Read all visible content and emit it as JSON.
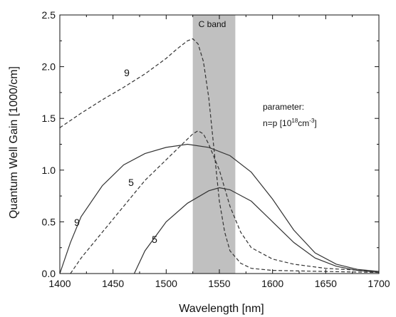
{
  "chart_data": {
    "type": "line",
    "title": "",
    "xlabel": "Wavelength [nm]",
    "ylabel": "Quantum Well Gain [1000/cm]",
    "xlim": [
      1400,
      1700
    ],
    "ylim": [
      0,
      2.5
    ],
    "x_ticks": [
      1400,
      1450,
      1500,
      1550,
      1600,
      1650,
      1700
    ],
    "y_ticks": [
      0.0,
      0.5,
      1.0,
      1.5,
      2.0,
      2.5
    ],
    "x_tick_labels": [
      "1400",
      "1450",
      "1500",
      "1550",
      "1600",
      "1650",
      "1700"
    ],
    "y_tick_labels": [
      "0.0",
      "0.5",
      "1.0",
      "1.5",
      "2.0",
      "2.5"
    ],
    "grid": false,
    "band": {
      "label": "C band",
      "x_start": 1525,
      "x_end": 1565,
      "color": "#c0c0c0"
    },
    "annotation": {
      "line1": "parameter:",
      "line2_prefix": "n=p [10",
      "line2_sup1": "18",
      "line2_mid": "cm",
      "line2_sup2": "-3",
      "line2_suffix": "]"
    },
    "series": [
      {
        "label": "9",
        "style": "dashed",
        "points": [
          [
            1400,
            1.41
          ],
          [
            1420,
            1.55
          ],
          [
            1440,
            1.68
          ],
          [
            1460,
            1.8
          ],
          [
            1480,
            1.93
          ],
          [
            1500,
            2.08
          ],
          [
            1510,
            2.17
          ],
          [
            1520,
            2.25
          ],
          [
            1525,
            2.27
          ],
          [
            1530,
            2.22
          ],
          [
            1535,
            2.05
          ],
          [
            1540,
            1.7
          ],
          [
            1545,
            1.2
          ],
          [
            1550,
            0.7
          ],
          [
            1555,
            0.4
          ],
          [
            1560,
            0.22
          ],
          [
            1570,
            0.1
          ],
          [
            1580,
            0.05
          ],
          [
            1600,
            0.03
          ],
          [
            1650,
            0.02
          ],
          [
            1700,
            0.01
          ]
        ]
      },
      {
        "label": "5",
        "style": "dashed",
        "points": [
          [
            1410,
            0.0
          ],
          [
            1420,
            0.15
          ],
          [
            1440,
            0.4
          ],
          [
            1460,
            0.65
          ],
          [
            1480,
            0.9
          ],
          [
            1500,
            1.1
          ],
          [
            1515,
            1.25
          ],
          [
            1525,
            1.35
          ],
          [
            1530,
            1.38
          ],
          [
            1535,
            1.35
          ],
          [
            1540,
            1.25
          ],
          [
            1550,
            1.0
          ],
          [
            1560,
            0.65
          ],
          [
            1570,
            0.4
          ],
          [
            1580,
            0.25
          ],
          [
            1600,
            0.14
          ],
          [
            1620,
            0.09
          ],
          [
            1650,
            0.05
          ],
          [
            1700,
            0.02
          ]
        ]
      },
      {
        "label": "9",
        "style": "solid",
        "points": [
          [
            1400,
            0.0
          ],
          [
            1410,
            0.3
          ],
          [
            1420,
            0.55
          ],
          [
            1440,
            0.85
          ],
          [
            1460,
            1.05
          ],
          [
            1480,
            1.16
          ],
          [
            1500,
            1.22
          ],
          [
            1520,
            1.25
          ],
          [
            1540,
            1.22
          ],
          [
            1560,
            1.14
          ],
          [
            1580,
            0.98
          ],
          [
            1600,
            0.72
          ],
          [
            1620,
            0.42
          ],
          [
            1640,
            0.2
          ],
          [
            1660,
            0.09
          ],
          [
            1680,
            0.04
          ],
          [
            1700,
            0.02
          ]
        ]
      },
      {
        "label": "5",
        "style": "solid",
        "points": [
          [
            1470,
            0.0
          ],
          [
            1480,
            0.22
          ],
          [
            1500,
            0.5
          ],
          [
            1520,
            0.68
          ],
          [
            1540,
            0.8
          ],
          [
            1550,
            0.83
          ],
          [
            1560,
            0.81
          ],
          [
            1580,
            0.7
          ],
          [
            1600,
            0.5
          ],
          [
            1620,
            0.3
          ],
          [
            1640,
            0.15
          ],
          [
            1660,
            0.07
          ],
          [
            1680,
            0.03
          ],
          [
            1700,
            0.01
          ]
        ]
      }
    ]
  }
}
